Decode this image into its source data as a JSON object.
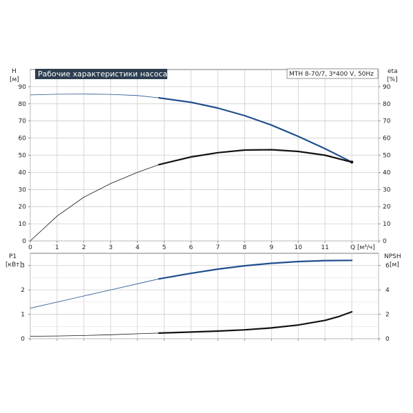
{
  "chart_data": [
    {
      "type": "line",
      "title": "Рабочие характеристики насоса",
      "subtitle": "MTH 8-70/7, 3*400 V, 50Hz",
      "xlabel": "Q [м³/ч]",
      "ylabel_left": "H\n[м]",
      "ylabel_right": "eta\n[%]",
      "xlim": [
        0,
        13
      ],
      "ylim": [
        0,
        100
      ],
      "x_ticks": [
        0,
        1,
        2,
        3,
        4,
        5,
        6,
        7,
        8,
        9,
        10,
        11
      ],
      "y_ticks": [
        0,
        10,
        20,
        30,
        40,
        50,
        60,
        70,
        80,
        90
      ],
      "grid": true,
      "series": [
        {
          "name": "H",
          "color": "#1f4e8c",
          "operating_range": [
            4.8,
            12.0
          ],
          "x": [
            0,
            1,
            2,
            3,
            4,
            4.8,
            6,
            7,
            8,
            9,
            10,
            11,
            12.0
          ],
          "values": [
            85.2,
            85.6,
            85.7,
            85.5,
            84.8,
            83.5,
            80.9,
            77.5,
            73.1,
            67.6,
            61.0,
            53.8,
            46.0
          ]
        },
        {
          "name": "eta",
          "color": "#111111",
          "operating_range": [
            4.8,
            12.0
          ],
          "x": [
            0,
            1,
            2,
            3,
            4,
            4.8,
            6,
            7,
            8,
            9,
            10,
            11,
            12.0
          ],
          "values": [
            0,
            14.5,
            25.5,
            33.5,
            40.0,
            44.5,
            49.0,
            51.5,
            53.0,
            53.2,
            52.2,
            50.0,
            46.0
          ]
        }
      ]
    },
    {
      "type": "line",
      "xlabel": "",
      "ylabel_left": "P1\n[кВт]",
      "ylabel_right": "NPSH\n[м]",
      "xlim": [
        0,
        13
      ],
      "ylim_left": [
        0,
        3.5
      ],
      "ylim_right": [
        0,
        7
      ],
      "y_ticks_left": [
        0,
        1,
        2,
        3
      ],
      "y_ticks_right": [
        0,
        2,
        4,
        6
      ],
      "grid": true,
      "series": [
        {
          "name": "P1",
          "axis": "left",
          "color": "#1f4e8c",
          "operating_range": [
            4.8,
            12.0
          ],
          "x": [
            0,
            1,
            2,
            3,
            4,
            4.8,
            6,
            7,
            8,
            9,
            10,
            11,
            12.0
          ],
          "values": [
            1.25,
            1.5,
            1.75,
            2.0,
            2.25,
            2.45,
            2.68,
            2.85,
            2.99,
            3.09,
            3.16,
            3.2,
            3.21
          ]
        },
        {
          "name": "NPSH",
          "axis": "right",
          "color": "#111111",
          "operating_range": [
            4.8,
            12.0
          ],
          "x": [
            0,
            1,
            2,
            3,
            4,
            4.8,
            6,
            7,
            8,
            9,
            10,
            11,
            11.5,
            12.0
          ],
          "values": [
            0.2,
            0.22,
            0.26,
            0.32,
            0.4,
            0.46,
            0.54,
            0.62,
            0.72,
            0.88,
            1.12,
            1.5,
            1.8,
            2.2
          ]
        }
      ]
    }
  ]
}
